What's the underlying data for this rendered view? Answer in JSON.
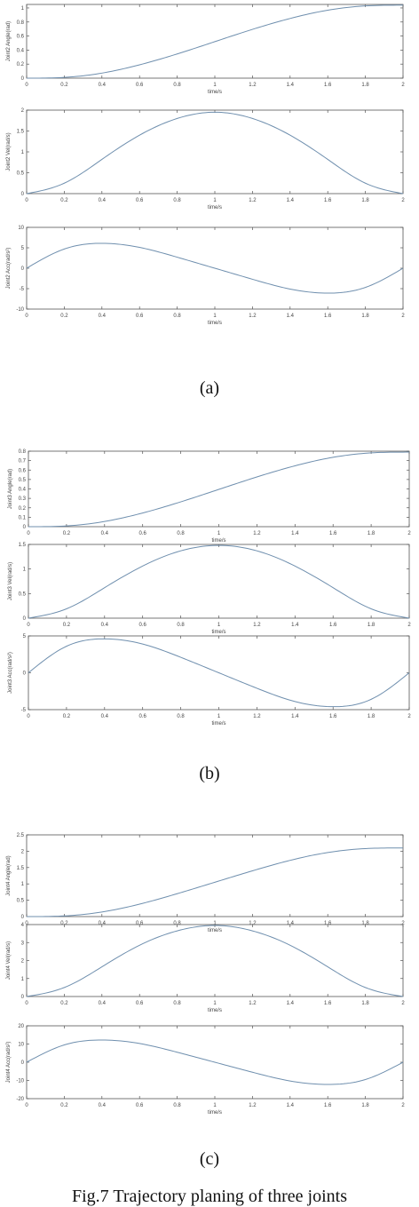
{
  "captions": {
    "a": "(a)",
    "b": "(b)",
    "c": "(c)",
    "figure": "Fig.7   Trajectory planing of three joints"
  },
  "style": {
    "curve_color": "#6f8fae",
    "axis_color": "#555555"
  },
  "chart_data": [
    {
      "type": "line",
      "panel": "a",
      "ylabel": "Joint2 Angle(rad)",
      "xlabel": "time/s",
      "xlim": [
        0,
        2
      ],
      "ylim": [
        0,
        1.05
      ],
      "xticks": [
        0,
        0.2,
        0.4,
        0.6,
        0.8,
        1,
        1.2,
        1.4,
        1.6,
        1.8,
        2
      ],
      "xtick_labels": [
        "0",
        "0.2",
        "0.4",
        "0.6",
        "0.8",
        "1",
        "1.2",
        "1.4",
        "1.6",
        "1.8",
        "2"
      ],
      "yticks": [
        0,
        0.2,
        0.4,
        0.6,
        0.8,
        1
      ],
      "ytick_labels": [
        "0",
        "0.2",
        "0.4",
        "0.6",
        "0.8",
        "1"
      ],
      "series": [
        {
          "x": [
            0,
            0.2,
            0.4,
            0.6,
            0.8,
            1,
            1.2,
            1.4,
            1.6,
            1.8,
            2
          ],
          "y": [
            0,
            0.011,
            0.072,
            0.19,
            0.345,
            0.52,
            0.695,
            0.85,
            0.968,
            1.029,
            1.04
          ]
        }
      ]
    },
    {
      "type": "line",
      "panel": "a",
      "ylabel": "Joint2 Vel(rad/s)",
      "xlabel": "time/s",
      "xlim": [
        0,
        2
      ],
      "ylim": [
        0,
        2
      ],
      "xticks": [
        0,
        0.2,
        0.4,
        0.6,
        0.8,
        1,
        1.2,
        1.4,
        1.6,
        1.8,
        2
      ],
      "xtick_labels": [
        "0",
        "0.2",
        "0.4",
        "0.6",
        "0.8",
        "1",
        "1.2",
        "1.4",
        "1.6",
        "1.8",
        "2"
      ],
      "yticks": [
        0,
        0.5,
        1,
        1.5,
        2
      ],
      "ytick_labels": [
        "0",
        "0.5",
        "1",
        "1.5",
        "2"
      ],
      "series": [
        {
          "x": [
            0,
            0.2,
            0.4,
            0.6,
            0.8,
            1,
            1.2,
            1.4,
            1.6,
            1.8,
            2
          ],
          "y": [
            0,
            0.25,
            0.82,
            1.4,
            1.8,
            1.95,
            1.8,
            1.4,
            0.82,
            0.25,
            0
          ]
        }
      ]
    },
    {
      "type": "line",
      "panel": "a",
      "ylabel": "Joint2 Acc(rad/s²)",
      "xlabel": "time/s",
      "xlim": [
        0,
        2
      ],
      "ylim": [
        -10,
        10
      ],
      "xticks": [
        0,
        0.2,
        0.4,
        0.6,
        0.8,
        1,
        1.2,
        1.4,
        1.6,
        1.8,
        2
      ],
      "xtick_labels": [
        "0",
        "0.2",
        "0.4",
        "0.6",
        "0.8",
        "1",
        "1.2",
        "1.4",
        "1.6",
        "1.8",
        "2"
      ],
      "yticks": [
        -10,
        -5,
        0,
        5,
        10
      ],
      "ytick_labels": [
        "-10",
        "-5",
        "0",
        "5",
        "10"
      ],
      "series": [
        {
          "x": [
            0,
            0.2,
            0.4,
            0.6,
            0.8,
            1,
            1.2,
            1.4,
            1.6,
            1.8,
            2
          ],
          "y": [
            0,
            4.7,
            6.1,
            5.1,
            2.7,
            0,
            -2.7,
            -5.1,
            -6.1,
            -4.7,
            0
          ]
        }
      ]
    },
    {
      "type": "line",
      "panel": "b",
      "ylabel": "Joint3 Angle(rad)",
      "xlabel": "time/s",
      "xlim": [
        0,
        2
      ],
      "ylim": [
        0,
        0.8
      ],
      "xticks": [
        0,
        0.2,
        0.4,
        0.6,
        0.8,
        1,
        1.2,
        1.4,
        1.6,
        1.8,
        2
      ],
      "xtick_labels": [
        "0",
        "0.2",
        "0.4",
        "0.6",
        "0.8",
        "1",
        "1.2",
        "1.4",
        "1.6",
        "1.8",
        "2"
      ],
      "yticks": [
        0,
        0.1,
        0.2,
        0.3,
        0.4,
        0.5,
        0.6,
        0.7,
        0.8
      ],
      "ytick_labels": [
        "0",
        "0.1",
        "0.2",
        "0.3",
        "0.4",
        "0.5",
        "0.6",
        "0.7",
        "0.8"
      ],
      "series": [
        {
          "x": [
            0,
            0.2,
            0.4,
            0.6,
            0.8,
            1,
            1.2,
            1.4,
            1.6,
            1.8,
            2
          ],
          "y": [
            0,
            0.008,
            0.055,
            0.145,
            0.263,
            0.395,
            0.527,
            0.645,
            0.735,
            0.782,
            0.79
          ]
        }
      ]
    },
    {
      "type": "line",
      "panel": "b",
      "ylabel": "Joint3 Vel(rad/s)",
      "xlabel": "time/s",
      "xlim": [
        0,
        2
      ],
      "ylim": [
        0,
        1.5
      ],
      "xticks": [
        0,
        0.2,
        0.4,
        0.6,
        0.8,
        1,
        1.2,
        1.4,
        1.6,
        1.8,
        2
      ],
      "xtick_labels": [
        "0",
        "0.2",
        "0.4",
        "0.6",
        "0.8",
        "1",
        "1.2",
        "1.4",
        "1.6",
        "1.8",
        "2"
      ],
      "yticks": [
        0,
        0.5,
        1,
        1.5
      ],
      "ytick_labels": [
        "0",
        "0.5",
        "1",
        "1.5"
      ],
      "series": [
        {
          "x": [
            0,
            0.2,
            0.4,
            0.6,
            0.8,
            1,
            1.2,
            1.4,
            1.6,
            1.8,
            2
          ],
          "y": [
            0,
            0.19,
            0.62,
            1.06,
            1.37,
            1.48,
            1.37,
            1.06,
            0.62,
            0.19,
            0
          ]
        }
      ]
    },
    {
      "type": "line",
      "panel": "b",
      "ylabel": "Joint3 Acc(rad/s²)",
      "xlabel": "time/s",
      "xlim": [
        0,
        2
      ],
      "ylim": [
        -5,
        5
      ],
      "xticks": [
        0,
        0.2,
        0.4,
        0.6,
        0.8,
        1,
        1.2,
        1.4,
        1.6,
        1.8,
        2
      ],
      "xtick_labels": [
        "0",
        "0.2",
        "0.4",
        "0.6",
        "0.8",
        "1",
        "1.2",
        "1.4",
        "1.6",
        "1.8",
        "2"
      ],
      "yticks": [
        -5,
        0,
        5
      ],
      "ytick_labels": [
        "-5",
        "0",
        "5"
      ],
      "series": [
        {
          "x": [
            0,
            0.2,
            0.4,
            0.6,
            0.8,
            1,
            1.2,
            1.4,
            1.6,
            1.8,
            2
          ],
          "y": [
            0,
            3.6,
            4.6,
            3.9,
            2.1,
            0,
            -2.1,
            -3.9,
            -4.6,
            -3.6,
            0
          ]
        }
      ]
    },
    {
      "type": "line",
      "panel": "c",
      "ylabel": "Joint4 Angle(rad)",
      "xlabel": "time/s",
      "xlim": [
        0,
        2
      ],
      "ylim": [
        0,
        2.5
      ],
      "xticks": [
        0,
        0.2,
        0.4,
        0.6,
        0.8,
        1,
        1.2,
        1.4,
        1.6,
        1.8,
        2
      ],
      "xtick_labels": [
        "0",
        "0.2",
        "0.4",
        "0.6",
        "0.8",
        "1",
        "1.2",
        "1.4",
        "1.6",
        "1.8",
        "2"
      ],
      "yticks": [
        0,
        0.5,
        1,
        1.5,
        2,
        2.5
      ],
      "ytick_labels": [
        "0",
        "0.5",
        "1",
        "1.5",
        "2",
        "2.5"
      ],
      "series": [
        {
          "x": [
            0,
            0.2,
            0.4,
            0.6,
            0.8,
            1,
            1.2,
            1.4,
            1.6,
            1.8,
            2
          ],
          "y": [
            0,
            0.02,
            0.14,
            0.38,
            0.7,
            1.05,
            1.4,
            1.72,
            1.96,
            2.08,
            2.1
          ]
        }
      ]
    },
    {
      "type": "line",
      "panel": "c",
      "ylabel": "Joint4 Vel(rad/s)",
      "xlabel": "time/s",
      "xlim": [
        0,
        2
      ],
      "ylim": [
        0,
        4
      ],
      "xticks": [
        0,
        0.2,
        0.4,
        0.6,
        0.8,
        1,
        1.2,
        1.4,
        1.6,
        1.8,
        2
      ],
      "xtick_labels": [
        "0",
        "0.2",
        "0.4",
        "0.6",
        "0.8",
        "1",
        "1.2",
        "1.4",
        "1.6",
        "1.8",
        "2"
      ],
      "yticks": [
        0,
        1,
        2,
        3,
        4
      ],
      "ytick_labels": [
        "0",
        "1",
        "2",
        "3",
        "4"
      ],
      "series": [
        {
          "x": [
            0,
            0.2,
            0.4,
            0.6,
            0.8,
            1,
            1.2,
            1.4,
            1.6,
            1.8,
            2
          ],
          "y": [
            0,
            0.5,
            1.65,
            2.85,
            3.65,
            3.95,
            3.65,
            2.85,
            1.65,
            0.5,
            0
          ]
        }
      ]
    },
    {
      "type": "line",
      "panel": "c",
      "ylabel": "Joint4 Acc(rad/s²)",
      "xlabel": "time/s",
      "xlim": [
        0,
        2
      ],
      "ylim": [
        -20,
        20
      ],
      "xticks": [
        0,
        0.2,
        0.4,
        0.6,
        0.8,
        1,
        1.2,
        1.4,
        1.6,
        1.8,
        2
      ],
      "xtick_labels": [
        "0",
        "0.2",
        "0.4",
        "0.6",
        "0.8",
        "1",
        "1.2",
        "1.4",
        "1.6",
        "1.8",
        "2"
      ],
      "yticks": [
        -20,
        -10,
        0,
        10,
        20
      ],
      "ytick_labels": [
        "-20",
        "-10",
        "0",
        "10",
        "20"
      ],
      "series": [
        {
          "x": [
            0,
            0.2,
            0.4,
            0.6,
            0.8,
            1,
            1.2,
            1.4,
            1.6,
            1.8,
            2
          ],
          "y": [
            0,
            9.5,
            12.2,
            10.3,
            5.5,
            0,
            -5.5,
            -10.3,
            -12.2,
            -9.5,
            0
          ]
        }
      ]
    }
  ]
}
